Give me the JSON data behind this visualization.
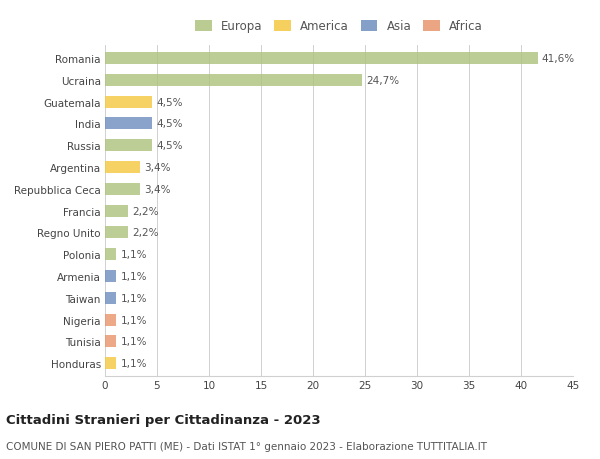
{
  "categories": [
    "Romania",
    "Ucraina",
    "Guatemala",
    "India",
    "Russia",
    "Argentina",
    "Repubblica Ceca",
    "Francia",
    "Regno Unito",
    "Polonia",
    "Armenia",
    "Taiwan",
    "Nigeria",
    "Tunisia",
    "Honduras"
  ],
  "values": [
    41.6,
    24.7,
    4.5,
    4.5,
    4.5,
    3.4,
    3.4,
    2.2,
    2.2,
    1.1,
    1.1,
    1.1,
    1.1,
    1.1,
    1.1
  ],
  "labels": [
    "41,6%",
    "24,7%",
    "4,5%",
    "4,5%",
    "4,5%",
    "3,4%",
    "3,4%",
    "2,2%",
    "2,2%",
    "1,1%",
    "1,1%",
    "1,1%",
    "1,1%",
    "1,1%",
    "1,1%"
  ],
  "colors": [
    "#aec47f",
    "#aec47f",
    "#f5c842",
    "#6f8fbf",
    "#aec47f",
    "#f5c842",
    "#aec47f",
    "#aec47f",
    "#aec47f",
    "#aec47f",
    "#6f8fbf",
    "#6f8fbf",
    "#e8956d",
    "#e8956d",
    "#f5c842"
  ],
  "continent_colors": {
    "Europa": "#aec47f",
    "America": "#f5c842",
    "Asia": "#6f8fbf",
    "Africa": "#e8956d"
  },
  "legend_labels": [
    "Europa",
    "America",
    "Asia",
    "Africa"
  ],
  "xlim": [
    0,
    45
  ],
  "xticks": [
    0,
    5,
    10,
    15,
    20,
    25,
    30,
    35,
    40,
    45
  ],
  "title": "Cittadini Stranieri per Cittadinanza - 2023",
  "subtitle": "COMUNE DI SAN PIERO PATTI (ME) - Dati ISTAT 1° gennaio 2023 - Elaborazione TUTTITALIA.IT",
  "bg_color": "#ffffff",
  "grid_color": "#d0d0d0",
  "bar_height": 0.55,
  "title_fontsize": 9.5,
  "subtitle_fontsize": 7.5,
  "label_fontsize": 7.5,
  "tick_fontsize": 7.5,
  "legend_fontsize": 8.5
}
